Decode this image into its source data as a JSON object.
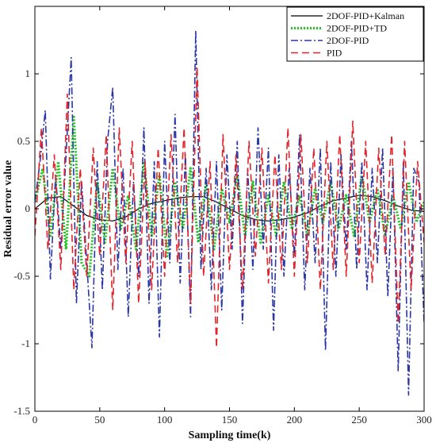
{
  "chart_data": {
    "type": "line",
    "xlabel": "Sampling time(k)",
    "ylabel": "Residual error value",
    "xlim": [
      0,
      300
    ],
    "ylim": [
      -1.5,
      1.5
    ],
    "x_ticks": [
      0,
      50,
      100,
      150,
      200,
      250,
      300
    ],
    "y_ticks": [
      -1.5,
      -1,
      -0.5,
      0,
      0.5,
      1
    ],
    "grid": false,
    "legend_position": "top-right",
    "series": [
      {
        "name": "2DOF-PID+Kalman",
        "color": "#000000",
        "style": "solid",
        "x": [
          0,
          10,
          20,
          30,
          40,
          50,
          60,
          70,
          80,
          90,
          100,
          110,
          120,
          130,
          140,
          150,
          160,
          170,
          180,
          190,
          200,
          210,
          220,
          230,
          240,
          250,
          260,
          270,
          280,
          290,
          300
        ],
        "y": [
          0.0,
          0.08,
          0.09,
          0.02,
          -0.05,
          -0.08,
          -0.09,
          -0.06,
          0.0,
          0.04,
          0.06,
          0.08,
          0.09,
          0.09,
          0.05,
          0.0,
          -0.05,
          -0.08,
          -0.09,
          -0.08,
          -0.06,
          -0.03,
          0.02,
          0.06,
          0.08,
          0.1,
          0.09,
          0.06,
          0.02,
          -0.01,
          -0.02
        ]
      },
      {
        "name": "2DOF-PID+TD",
        "color": "#22c322",
        "style": "dotted",
        "x": [
          0,
          6,
          12,
          18,
          24,
          30,
          36,
          42,
          48,
          54,
          60,
          66,
          72,
          78,
          84,
          90,
          96,
          102,
          108,
          114,
          120,
          126,
          132,
          138,
          144,
          150,
          156,
          162,
          168,
          174,
          180,
          186,
          192,
          198,
          204,
          210,
          216,
          222,
          228,
          234,
          240,
          246,
          252,
          258,
          264,
          270,
          276,
          282,
          288,
          294,
          300
        ],
        "y": [
          0.05,
          0.3,
          -0.2,
          0.35,
          -0.3,
          0.68,
          -0.4,
          -0.5,
          0.2,
          -0.25,
          0.3,
          -0.15,
          0.1,
          -0.3,
          0.35,
          -0.2,
          0.25,
          -0.35,
          0.2,
          -0.15,
          0.3,
          -0.25,
          0.2,
          -0.3,
          0.15,
          -0.1,
          0.25,
          -0.2,
          0.2,
          -0.25,
          0.1,
          -0.2,
          0.2,
          -0.15,
          0.1,
          -0.2,
          0.15,
          -0.1,
          0.2,
          -0.15,
          0.1,
          -0.2,
          0.25,
          -0.1,
          0.15,
          -0.2,
          0.1,
          -0.15,
          0.2,
          -0.1,
          0.05
        ]
      },
      {
        "name": "2DOF-PID",
        "color": "#2b35a8",
        "style": "dashdot",
        "x": [
          0,
          4,
          8,
          12,
          16,
          20,
          24,
          28,
          32,
          36,
          40,
          44,
          48,
          52,
          56,
          60,
          64,
          68,
          72,
          76,
          80,
          84,
          88,
          92,
          96,
          100,
          104,
          108,
          112,
          116,
          120,
          124,
          128,
          132,
          136,
          140,
          144,
          148,
          152,
          156,
          160,
          164,
          168,
          172,
          176,
          180,
          184,
          188,
          192,
          196,
          200,
          204,
          208,
          212,
          216,
          220,
          224,
          228,
          232,
          236,
          240,
          244,
          248,
          252,
          256,
          260,
          264,
          268,
          272,
          276,
          280,
          284,
          288,
          292,
          296,
          300
        ],
        "y": [
          0.05,
          0.35,
          0.73,
          -0.52,
          0.25,
          -0.3,
          0.4,
          1.12,
          -0.7,
          0.2,
          -0.4,
          -1.03,
          0.35,
          -0.6,
          0.5,
          0.9,
          -0.45,
          0.3,
          -0.8,
          0.2,
          -0.5,
          0.6,
          -0.7,
          0.35,
          -0.95,
          0.5,
          -0.4,
          0.7,
          -0.55,
          0.4,
          -0.8,
          1.32,
          -0.45,
          0.3,
          -0.6,
          0.35,
          -0.75,
          0.4,
          -0.3,
          0.5,
          -0.85,
          0.3,
          -0.45,
          0.6,
          -0.3,
          0.45,
          -0.9,
          0.4,
          -0.5,
          0.3,
          -0.35,
          0.55,
          -0.6,
          0.3,
          -0.4,
          0.45,
          -1.05,
          0.35,
          -0.5,
          0.4,
          -0.3,
          0.5,
          -0.45,
          0.35,
          -0.6,
          0.3,
          -0.4,
          0.45,
          -0.65,
          0.3,
          -1.2,
          0.35,
          -1.38,
          0.3,
          0.2,
          -0.85
        ]
      },
      {
        "name": "PID",
        "color": "#e0242b",
        "style": "dashed",
        "x": [
          0,
          5,
          10,
          15,
          20,
          25,
          30,
          35,
          40,
          45,
          50,
          55,
          60,
          65,
          70,
          75,
          80,
          85,
          90,
          95,
          100,
          105,
          110,
          115,
          120,
          125,
          130,
          135,
          140,
          145,
          150,
          155,
          160,
          165,
          170,
          175,
          180,
          185,
          190,
          195,
          200,
          205,
          210,
          215,
          220,
          225,
          230,
          235,
          240,
          245,
          250,
          255,
          260,
          265,
          270,
          275,
          280,
          285,
          290,
          295,
          300
        ],
        "y": [
          -0.2,
          0.6,
          -0.3,
          0.4,
          -0.45,
          0.85,
          -0.6,
          0.3,
          -0.5,
          0.45,
          -0.35,
          0.55,
          -0.75,
          0.6,
          -0.4,
          0.5,
          -0.7,
          0.35,
          -0.6,
          0.45,
          -0.5,
          0.55,
          -0.4,
          0.6,
          -0.7,
          1.05,
          -0.5,
          0.35,
          -1.03,
          0.55,
          -0.45,
          0.4,
          -0.6,
          0.5,
          -0.35,
          0.45,
          -0.55,
          0.4,
          -0.45,
          0.6,
          -0.5,
          0.55,
          -0.4,
          0.45,
          -0.6,
          0.5,
          -0.45,
          0.55,
          -0.5,
          0.65,
          -0.4,
          0.5,
          -0.55,
          0.45,
          -0.35,
          0.55,
          -0.85,
          0.5,
          -0.6,
          0.35,
          -0.25
        ]
      }
    ]
  }
}
